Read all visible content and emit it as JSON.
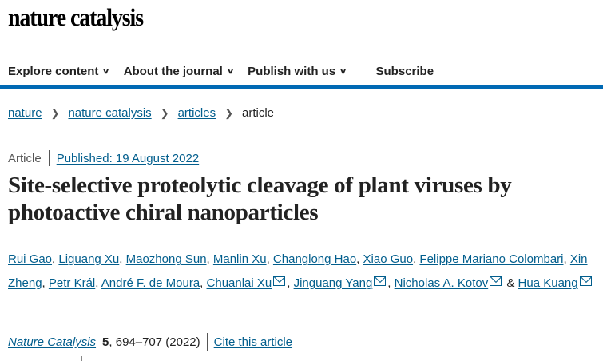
{
  "header": {
    "logo": "nature catalysis"
  },
  "nav": {
    "items": [
      {
        "label": "Explore content"
      },
      {
        "label": "About the journal"
      },
      {
        "label": "Publish with us"
      }
    ],
    "subscribe": "Subscribe"
  },
  "breadcrumb": [
    "nature",
    "nature catalysis",
    "articles",
    "article"
  ],
  "article": {
    "type": "Article",
    "published": "Published: 19 August 2022",
    "title": "Site-selective proteolytic cleavage of plant viruses by photoactive chiral nanoparticles",
    "authors": [
      {
        "name": "Rui Gao",
        "email": false
      },
      {
        "name": "Liguang Xu",
        "email": false
      },
      {
        "name": "Maozhong Sun",
        "email": false
      },
      {
        "name": "Manlin Xu",
        "email": false
      },
      {
        "name": "Changlong Hao",
        "email": false
      },
      {
        "name": "Xiao Guo",
        "email": false
      },
      {
        "name": "Felippe Mariano Colombari",
        "email": false
      },
      {
        "name": "Xin Zheng",
        "email": false
      },
      {
        "name": "Petr Král",
        "email": false
      },
      {
        "name": "André F. de Moura",
        "email": false
      },
      {
        "name": "Chuanlai Xu",
        "email": true
      },
      {
        "name": "Jinguang Yang",
        "email": true
      },
      {
        "name": "Nicholas A. Kotov",
        "email": true
      },
      {
        "name": "Hua Kuang",
        "email": true
      }
    ],
    "journal": "Nature Catalysis",
    "volume": "5",
    "pages": ", 694–707 (2022)",
    "cite": "Cite this article"
  },
  "colors": {
    "link": "#025e8d",
    "accent_bar": "#0069b4"
  }
}
